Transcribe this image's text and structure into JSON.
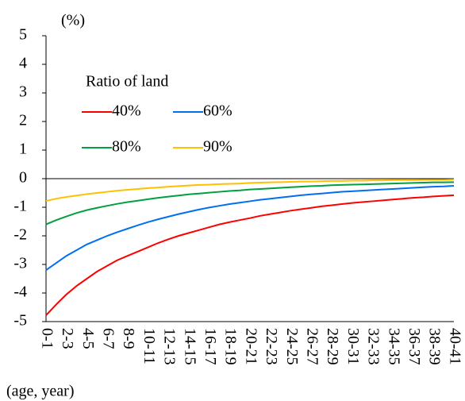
{
  "chart_data": {
    "type": "line",
    "y_label": "(%)",
    "x_label": "(age, year)",
    "legend_title": "Ratio of land",
    "categories": [
      "0-1",
      null,
      "2-3",
      null,
      "4-5",
      null,
      "6-7",
      null,
      "8-9",
      null,
      "10-11",
      null,
      "12-13",
      null,
      "14-15",
      null,
      "16-17",
      null,
      "18-19",
      null,
      "20-21",
      null,
      "22-23",
      null,
      "24-25",
      null,
      "26-27",
      null,
      "28-29",
      null,
      "30-31",
      null,
      "32-33",
      null,
      "34-35",
      null,
      "36-37",
      null,
      "38-39",
      null,
      "40-41"
    ],
    "ylim": [
      -5,
      5
    ],
    "yticks": [
      5,
      4,
      3,
      2,
      1,
      0,
      -1,
      -2,
      -3,
      -4,
      -5
    ],
    "series": [
      {
        "name": "40%",
        "color": "#ff0000",
        "values": [
          -4.78,
          -4.4,
          -4.05,
          -3.75,
          -3.5,
          -3.25,
          -3.05,
          -2.85,
          -2.7,
          -2.55,
          -2.4,
          -2.25,
          -2.12,
          -2.0,
          -1.9,
          -1.8,
          -1.7,
          -1.6,
          -1.52,
          -1.45,
          -1.38,
          -1.3,
          -1.24,
          -1.18,
          -1.12,
          -1.07,
          -1.02,
          -0.97,
          -0.93,
          -0.89,
          -0.85,
          -0.82,
          -0.79,
          -0.76,
          -0.73,
          -0.7,
          -0.67,
          -0.65,
          -0.62,
          -0.6,
          -0.58
        ]
      },
      {
        "name": "60%",
        "color": "#0070f0",
        "values": [
          -3.2,
          -2.95,
          -2.7,
          -2.5,
          -2.3,
          -2.15,
          -2.0,
          -1.87,
          -1.75,
          -1.63,
          -1.52,
          -1.42,
          -1.33,
          -1.24,
          -1.16,
          -1.08,
          -1.01,
          -0.95,
          -0.89,
          -0.84,
          -0.79,
          -0.74,
          -0.7,
          -0.66,
          -0.62,
          -0.58,
          -0.55,
          -0.52,
          -0.49,
          -0.46,
          -0.44,
          -0.42,
          -0.4,
          -0.38,
          -0.36,
          -0.34,
          -0.32,
          -0.3,
          -0.28,
          -0.27,
          -0.25
        ]
      },
      {
        "name": "80%",
        "color": "#00a040",
        "values": [
          -1.6,
          -1.45,
          -1.32,
          -1.2,
          -1.1,
          -1.02,
          -0.95,
          -0.88,
          -0.82,
          -0.77,
          -0.72,
          -0.67,
          -0.63,
          -0.59,
          -0.55,
          -0.52,
          -0.49,
          -0.46,
          -0.43,
          -0.41,
          -0.38,
          -0.36,
          -0.34,
          -0.32,
          -0.3,
          -0.28,
          -0.26,
          -0.25,
          -0.23,
          -0.22,
          -0.21,
          -0.2,
          -0.19,
          -0.18,
          -0.17,
          -0.16,
          -0.15,
          -0.14,
          -0.13,
          -0.13,
          -0.12
        ]
      },
      {
        "name": "90%",
        "color": "#ffc000",
        "values": [
          -0.78,
          -0.7,
          -0.64,
          -0.59,
          -0.54,
          -0.5,
          -0.46,
          -0.42,
          -0.39,
          -0.36,
          -0.33,
          -0.31,
          -0.28,
          -0.26,
          -0.24,
          -0.22,
          -0.21,
          -0.19,
          -0.18,
          -0.17,
          -0.15,
          -0.14,
          -0.13,
          -0.12,
          -0.11,
          -0.1,
          -0.1,
          -0.09,
          -0.08,
          -0.08,
          -0.07,
          -0.07,
          -0.06,
          -0.06,
          -0.05,
          -0.05,
          -0.05,
          -0.04,
          -0.04,
          -0.04,
          -0.03
        ]
      }
    ]
  }
}
